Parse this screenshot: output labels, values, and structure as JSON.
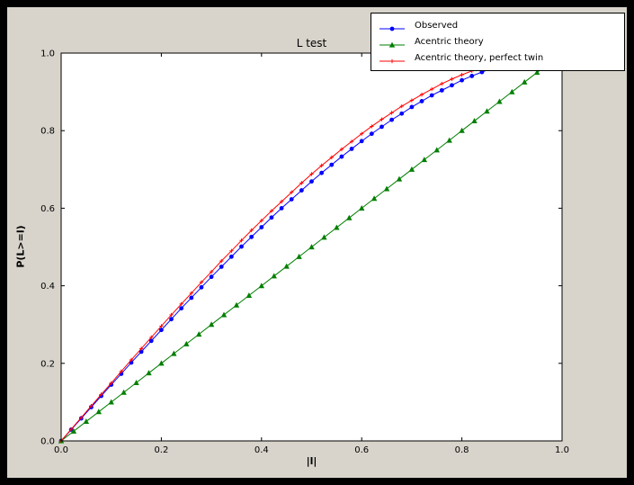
{
  "colors": {
    "outer_background": "#000000",
    "figure_background": "#d8d4cc",
    "plot_background": "#ffffff",
    "axis_color": "#000000"
  },
  "chart_data": {
    "type": "line",
    "title": "L test",
    "xlabel": "|l|",
    "ylabel": "P(L>=l)",
    "xlim": [
      0.0,
      1.0
    ],
    "ylim": [
      0.0,
      1.0
    ],
    "xticks": [
      0.0,
      0.2,
      0.4,
      0.6,
      0.8,
      1.0
    ],
    "xtick_labels": [
      "0.0",
      "0.2",
      "0.4",
      "0.6",
      "0.8",
      "1.0"
    ],
    "yticks": [
      0.0,
      0.2,
      0.4,
      0.6,
      0.8,
      1.0
    ],
    "ytick_labels": [
      "0.0",
      "0.2",
      "0.4",
      "0.6",
      "0.8",
      "1.0"
    ],
    "grid": false,
    "legend_position": "upper right",
    "series": [
      {
        "name": "Observed",
        "color": "#0000ff",
        "marker": "circle",
        "x": [
          0,
          0.02,
          0.04,
          0.06,
          0.08,
          0.1,
          0.12,
          0.14,
          0.16,
          0.18,
          0.2,
          0.22,
          0.24,
          0.26,
          0.28,
          0.3,
          0.32,
          0.34,
          0.36,
          0.38,
          0.4,
          0.42,
          0.44,
          0.46,
          0.48,
          0.5,
          0.52,
          0.54,
          0.56,
          0.58,
          0.6,
          0.62,
          0.64,
          0.66,
          0.68,
          0.7,
          0.72,
          0.74,
          0.76,
          0.78,
          0.8,
          0.82,
          0.84,
          0.86
        ],
        "y": [
          0,
          0.029,
          0.058,
          0.087,
          0.116,
          0.145,
          0.173,
          0.202,
          0.23,
          0.258,
          0.286,
          0.314,
          0.342,
          0.369,
          0.396,
          0.423,
          0.449,
          0.475,
          0.501,
          0.526,
          0.551,
          0.576,
          0.6,
          0.623,
          0.646,
          0.669,
          0.691,
          0.712,
          0.733,
          0.753,
          0.773,
          0.792,
          0.81,
          0.828,
          0.844,
          0.861,
          0.876,
          0.891,
          0.904,
          0.917,
          0.93,
          0.941,
          0.951,
          0.961
        ]
      },
      {
        "name": "Acentric theory",
        "color": "#007f00",
        "marker": "triangle",
        "x": [
          0,
          0.025,
          0.05,
          0.075,
          0.1,
          0.125,
          0.15,
          0.175,
          0.2,
          0.225,
          0.25,
          0.275,
          0.3,
          0.325,
          0.35,
          0.375,
          0.4,
          0.425,
          0.45,
          0.475,
          0.5,
          0.525,
          0.55,
          0.575,
          0.6,
          0.625,
          0.65,
          0.675,
          0.7,
          0.725,
          0.75,
          0.775,
          0.8,
          0.825,
          0.85,
          0.875,
          0.9,
          0.925,
          0.95,
          0.975
        ],
        "y": [
          0,
          0.025,
          0.05,
          0.075,
          0.1,
          0.125,
          0.15,
          0.175,
          0.2,
          0.225,
          0.25,
          0.275,
          0.3,
          0.325,
          0.35,
          0.375,
          0.4,
          0.425,
          0.45,
          0.475,
          0.5,
          0.525,
          0.55,
          0.575,
          0.6,
          0.625,
          0.65,
          0.675,
          0.7,
          0.725,
          0.75,
          0.775,
          0.8,
          0.825,
          0.85,
          0.875,
          0.9,
          0.925,
          0.95,
          0.975
        ]
      },
      {
        "name": "Acentric theory, perfect twin",
        "color": "#ff0000",
        "marker": "plus",
        "x": [
          0,
          0.02,
          0.04,
          0.06,
          0.08,
          0.1,
          0.12,
          0.14,
          0.16,
          0.18,
          0.2,
          0.22,
          0.24,
          0.26,
          0.28,
          0.3,
          0.32,
          0.34,
          0.36,
          0.38,
          0.4,
          0.42,
          0.44,
          0.46,
          0.48,
          0.5,
          0.52,
          0.54,
          0.56,
          0.58,
          0.6,
          0.62,
          0.64,
          0.66,
          0.68,
          0.7,
          0.72,
          0.74,
          0.76,
          0.78,
          0.8,
          0.82,
          0.84
        ],
        "y": [
          0,
          0.03,
          0.06,
          0.09,
          0.12,
          0.149,
          0.179,
          0.209,
          0.238,
          0.267,
          0.296,
          0.325,
          0.353,
          0.381,
          0.409,
          0.436,
          0.464,
          0.49,
          0.517,
          0.543,
          0.568,
          0.593,
          0.617,
          0.641,
          0.665,
          0.688,
          0.71,
          0.731,
          0.752,
          0.772,
          0.792,
          0.811,
          0.829,
          0.846,
          0.863,
          0.878,
          0.893,
          0.907,
          0.921,
          0.933,
          0.944,
          0.954,
          0.964
        ]
      }
    ]
  }
}
